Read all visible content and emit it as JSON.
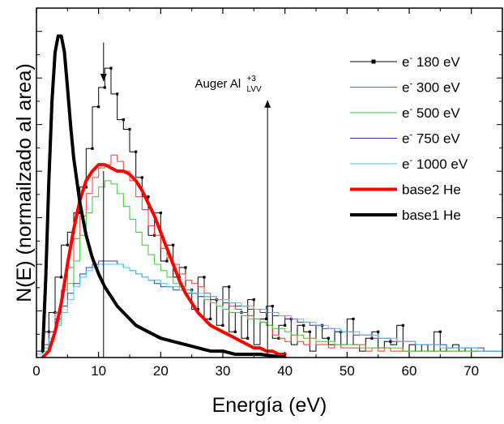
{
  "chart_data": {
    "type": "line",
    "xlabel": "Energía (eV)",
    "ylabel": "N(E)  (normailzado al area)",
    "xlim": [
      0,
      75
    ],
    "ylim": [
      0,
      1.0
    ],
    "x_ticks": [
      "0",
      "10",
      "20",
      "30",
      "40",
      "50",
      "60",
      "70"
    ],
    "y_ticks_labeled": false,
    "legend_position": "top-right",
    "series": [
      {
        "name": "e⁻ 180 eV",
        "legend_text": "180 eV",
        "color": "#000000",
        "style": "step-markers",
        "width": 1,
        "x": [
          0,
          1,
          2,
          3,
          4,
          5,
          6,
          7,
          8,
          9,
          10,
          11,
          12,
          13,
          14,
          15,
          16,
          17,
          18,
          19,
          20,
          21,
          22,
          23,
          24,
          25,
          26,
          27,
          28,
          29,
          30,
          31,
          32,
          33,
          34,
          35,
          36,
          37,
          38,
          39,
          40,
          41,
          42,
          43,
          44,
          45,
          46,
          47,
          48,
          49,
          50,
          51,
          52,
          53,
          54,
          55,
          56,
          57,
          58,
          59,
          60,
          61,
          62,
          63,
          64,
          65,
          66,
          67,
          68,
          69,
          70,
          71,
          72,
          73,
          74
        ],
        "y": [
          0.02,
          0.08,
          0.14,
          0.25,
          0.35,
          0.39,
          0.45,
          0.53,
          0.65,
          0.78,
          0.84,
          0.9,
          0.82,
          0.74,
          0.71,
          0.64,
          0.56,
          0.5,
          0.38,
          0.45,
          0.3,
          0.35,
          0.25,
          0.28,
          0.21,
          0.15,
          0.25,
          0.12,
          0.18,
          0.1,
          0.22,
          0.08,
          0.14,
          0.06,
          0.18,
          0.04,
          0.12,
          0.16,
          0.06,
          0.1,
          0.12,
          0.04,
          0.1,
          0.08,
          0.02,
          0.1,
          0.06,
          0.04,
          0.08,
          0.04,
          0.12,
          0.04,
          0.02,
          0.06,
          0.08,
          0.03,
          0.05,
          0.04,
          0.1,
          0.02,
          0.04,
          0.02,
          0.04,
          0.02,
          0.08,
          0.02,
          0.03,
          0.04,
          0.02,
          0.03,
          0.02,
          0.02,
          0.02,
          0.02,
          0.02
        ]
      },
      {
        "name": "e⁻ 300 eV",
        "legend_text": "300 eV",
        "color": "#ff3333",
        "style": "step",
        "width": 1,
        "x": [
          0,
          1,
          2,
          3,
          4,
          5,
          6,
          7,
          8,
          9,
          10,
          11,
          12,
          13,
          14,
          15,
          16,
          17,
          18,
          19,
          20,
          21,
          22,
          23,
          24,
          25,
          26,
          27,
          28,
          29,
          30,
          31,
          32,
          33,
          34,
          35,
          36,
          37,
          38,
          39,
          40,
          41,
          42,
          43,
          44,
          45,
          46,
          47,
          48,
          49,
          50,
          51,
          52,
          53,
          54,
          55,
          56,
          57,
          58,
          59,
          60,
          61,
          62,
          63,
          64,
          65,
          66,
          67,
          68,
          69,
          70,
          71,
          72,
          73,
          74
        ],
        "y": [
          0.01,
          0.03,
          0.08,
          0.14,
          0.21,
          0.28,
          0.37,
          0.44,
          0.51,
          0.56,
          0.59,
          0.6,
          0.63,
          0.61,
          0.58,
          0.55,
          0.5,
          0.46,
          0.41,
          0.38,
          0.34,
          0.31,
          0.29,
          0.26,
          0.24,
          0.23,
          0.22,
          0.2,
          0.19,
          0.18,
          0.17,
          0.16,
          0.15,
          0.14,
          0.13,
          0.12,
          0.11,
          0.1,
          0.07,
          0.06,
          0.05,
          0.07,
          0.05,
          0.04,
          0.06,
          0.04,
          0.04,
          0.03,
          0.04,
          0.03,
          0.03,
          0.03,
          0.04,
          0.02,
          0.03,
          0.02,
          0.03,
          0.02,
          0.02,
          0.02,
          0.02,
          0.02,
          0.02,
          0.02,
          0.02,
          0.02,
          0.02,
          0.02,
          0.02,
          0.02,
          0.02,
          0.02,
          0.02,
          0.02,
          0.02
        ]
      },
      {
        "name": "e⁻ 500 eV",
        "legend_text": "500 eV",
        "color": "#33cc33",
        "style": "step",
        "width": 1,
        "x": [
          0,
          1,
          2,
          3,
          4,
          5,
          6,
          7,
          8,
          9,
          10,
          11,
          12,
          13,
          14,
          15,
          16,
          17,
          18,
          19,
          20,
          21,
          22,
          23,
          24,
          25,
          26,
          27,
          28,
          29,
          30,
          31,
          32,
          33,
          34,
          35,
          36,
          37,
          38,
          39,
          40,
          41,
          42,
          43,
          44,
          45,
          46,
          47,
          48,
          49,
          50,
          51,
          52,
          53,
          54,
          55,
          56,
          57,
          58,
          59,
          60,
          61,
          62,
          63,
          64,
          65,
          66,
          67,
          68,
          69,
          70,
          71,
          72,
          73,
          74
        ],
        "y": [
          0.01,
          0.02,
          0.05,
          0.1,
          0.16,
          0.23,
          0.3,
          0.38,
          0.45,
          0.5,
          0.53,
          0.55,
          0.54,
          0.51,
          0.47,
          0.43,
          0.39,
          0.35,
          0.32,
          0.29,
          0.27,
          0.25,
          0.23,
          0.22,
          0.21,
          0.2,
          0.19,
          0.18,
          0.17,
          0.16,
          0.15,
          0.14,
          0.14,
          0.13,
          0.12,
          0.12,
          0.11,
          0.1,
          0.09,
          0.09,
          0.08,
          0.07,
          0.07,
          0.06,
          0.06,
          0.05,
          0.05,
          0.05,
          0.04,
          0.04,
          0.04,
          0.04,
          0.03,
          0.03,
          0.03,
          0.03,
          0.03,
          0.03,
          0.03,
          0.02,
          0.02,
          0.02,
          0.02,
          0.02,
          0.02,
          0.02,
          0.02,
          0.02,
          0.02,
          0.02,
          0.02,
          0.02,
          0.02,
          0.02,
          0.02
        ]
      },
      {
        "name": "e⁻ 750 eV",
        "legend_text": "750 eV",
        "color": "#3333cc",
        "style": "step",
        "width": 1,
        "x": [
          0,
          1,
          2,
          3,
          4,
          5,
          6,
          7,
          8,
          9,
          10,
          11,
          12,
          13,
          14,
          15,
          16,
          17,
          18,
          19,
          20,
          21,
          22,
          23,
          24,
          25,
          26,
          27,
          28,
          29,
          30,
          31,
          32,
          33,
          34,
          35,
          36,
          37,
          38,
          39,
          40,
          41,
          42,
          43,
          44,
          45,
          46,
          47,
          48,
          49,
          50,
          51,
          52,
          53,
          54,
          55,
          56,
          57,
          58,
          59,
          60,
          61,
          62,
          63,
          64,
          65,
          66,
          67,
          68,
          69,
          70,
          71,
          72,
          73,
          74
        ],
        "y": [
          0.02,
          0.04,
          0.08,
          0.12,
          0.16,
          0.2,
          0.23,
          0.26,
          0.28,
          0.29,
          0.3,
          0.3,
          0.3,
          0.29,
          0.28,
          0.27,
          0.26,
          0.25,
          0.24,
          0.23,
          0.22,
          0.22,
          0.21,
          0.21,
          0.2,
          0.2,
          0.19,
          0.19,
          0.18,
          0.18,
          0.17,
          0.17,
          0.16,
          0.16,
          0.15,
          0.15,
          0.14,
          0.14,
          0.13,
          0.13,
          0.12,
          0.12,
          0.11,
          0.11,
          0.1,
          0.1,
          0.09,
          0.09,
          0.08,
          0.08,
          0.08,
          0.07,
          0.07,
          0.07,
          0.06,
          0.06,
          0.06,
          0.05,
          0.05,
          0.05,
          0.05,
          0.04,
          0.04,
          0.04,
          0.04,
          0.04,
          0.03,
          0.03,
          0.03,
          0.03,
          0.03,
          0.03,
          0.02,
          0.02,
          0.02
        ]
      },
      {
        "name": "e⁻ 1000 eV",
        "legend_text": "1000 eV",
        "color": "#33ccee",
        "style": "step",
        "width": 1,
        "x": [
          0,
          1,
          2,
          3,
          4,
          5,
          6,
          7,
          8,
          9,
          10,
          11,
          12,
          13,
          14,
          15,
          16,
          17,
          18,
          19,
          20,
          21,
          22,
          23,
          24,
          25,
          26,
          27,
          28,
          29,
          30,
          31,
          32,
          33,
          34,
          35,
          36,
          37,
          38,
          39,
          40,
          41,
          42,
          43,
          44,
          45,
          46,
          47,
          48,
          49,
          50,
          51,
          52,
          53,
          54,
          55,
          56,
          57,
          58,
          59,
          60,
          61,
          62,
          63,
          64,
          65,
          66,
          67,
          68,
          69,
          70,
          71,
          72,
          73,
          74
        ],
        "y": [
          0.01,
          0.03,
          0.06,
          0.1,
          0.14,
          0.18,
          0.22,
          0.25,
          0.27,
          0.28,
          0.29,
          0.29,
          0.29,
          0.29,
          0.28,
          0.27,
          0.26,
          0.25,
          0.24,
          0.24,
          0.23,
          0.22,
          0.22,
          0.21,
          0.21,
          0.2,
          0.2,
          0.19,
          0.19,
          0.18,
          0.18,
          0.17,
          0.17,
          0.16,
          0.16,
          0.15,
          0.15,
          0.14,
          0.14,
          0.13,
          0.13,
          0.12,
          0.12,
          0.11,
          0.11,
          0.1,
          0.1,
          0.09,
          0.09,
          0.08,
          0.08,
          0.08,
          0.07,
          0.07,
          0.07,
          0.06,
          0.06,
          0.06,
          0.05,
          0.05,
          0.05,
          0.04,
          0.04,
          0.04,
          0.04,
          0.03,
          0.03,
          0.03,
          0.03,
          0.03,
          0.03,
          0.02,
          0.02,
          0.02,
          0.02
        ]
      },
      {
        "name": "base2 He",
        "legend_text": "base2 He",
        "color": "#ff0000",
        "style": "line",
        "width": 4,
        "x": [
          1,
          2,
          3,
          4,
          5,
          6,
          7,
          8,
          9,
          10,
          11,
          12,
          13,
          14,
          15,
          16,
          17,
          18,
          19,
          20,
          21,
          22,
          23,
          24,
          25,
          26,
          27,
          28,
          29,
          30,
          31,
          32,
          33,
          34,
          35,
          36,
          37,
          38,
          39,
          40
        ],
        "y": [
          0.0,
          0.02,
          0.08,
          0.17,
          0.29,
          0.4,
          0.49,
          0.55,
          0.58,
          0.6,
          0.6,
          0.59,
          0.58,
          0.58,
          0.57,
          0.55,
          0.52,
          0.48,
          0.44,
          0.39,
          0.34,
          0.29,
          0.24,
          0.2,
          0.17,
          0.14,
          0.12,
          0.1,
          0.09,
          0.08,
          0.07,
          0.06,
          0.05,
          0.04,
          0.03,
          0.03,
          0.02,
          0.02,
          0.01,
          0.01
        ]
      },
      {
        "name": "base1 He",
        "legend_text": "base1 He",
        "color": "#000000",
        "style": "line",
        "width": 4,
        "x": [
          1,
          1.5,
          2,
          2.5,
          3,
          3.5,
          4,
          4.5,
          5,
          5.5,
          6,
          7,
          8,
          9,
          10,
          11,
          12,
          13,
          14,
          15,
          16,
          17,
          18,
          19,
          20,
          22,
          24,
          26,
          28,
          30,
          32,
          34,
          36,
          38,
          40
        ],
        "y": [
          0.02,
          0.25,
          0.55,
          0.8,
          0.95,
          1.0,
          1.0,
          0.95,
          0.84,
          0.72,
          0.62,
          0.48,
          0.38,
          0.31,
          0.26,
          0.22,
          0.19,
          0.16,
          0.14,
          0.12,
          0.1,
          0.09,
          0.08,
          0.07,
          0.06,
          0.05,
          0.04,
          0.03,
          0.02,
          0.02,
          0.01,
          0.01,
          0.01,
          0.005,
          0.0
        ]
      }
    ],
    "annotations": [
      {
        "type": "arrow-down",
        "x": 10.8,
        "y_from": 0.98,
        "y_to": 0.86
      },
      {
        "type": "vline",
        "x": 10.8
      },
      {
        "type": "arrow-up",
        "x": 37.2,
        "y_from": 0.0,
        "y_to": 0.8
      },
      {
        "type": "label",
        "text": "Auger Al",
        "sup": "+3",
        "sub": "LVV",
        "x": 25.5,
        "y": 0.84
      }
    ]
  },
  "legend": {
    "electron_symbol": "e",
    "electron_superscript": "-"
  }
}
